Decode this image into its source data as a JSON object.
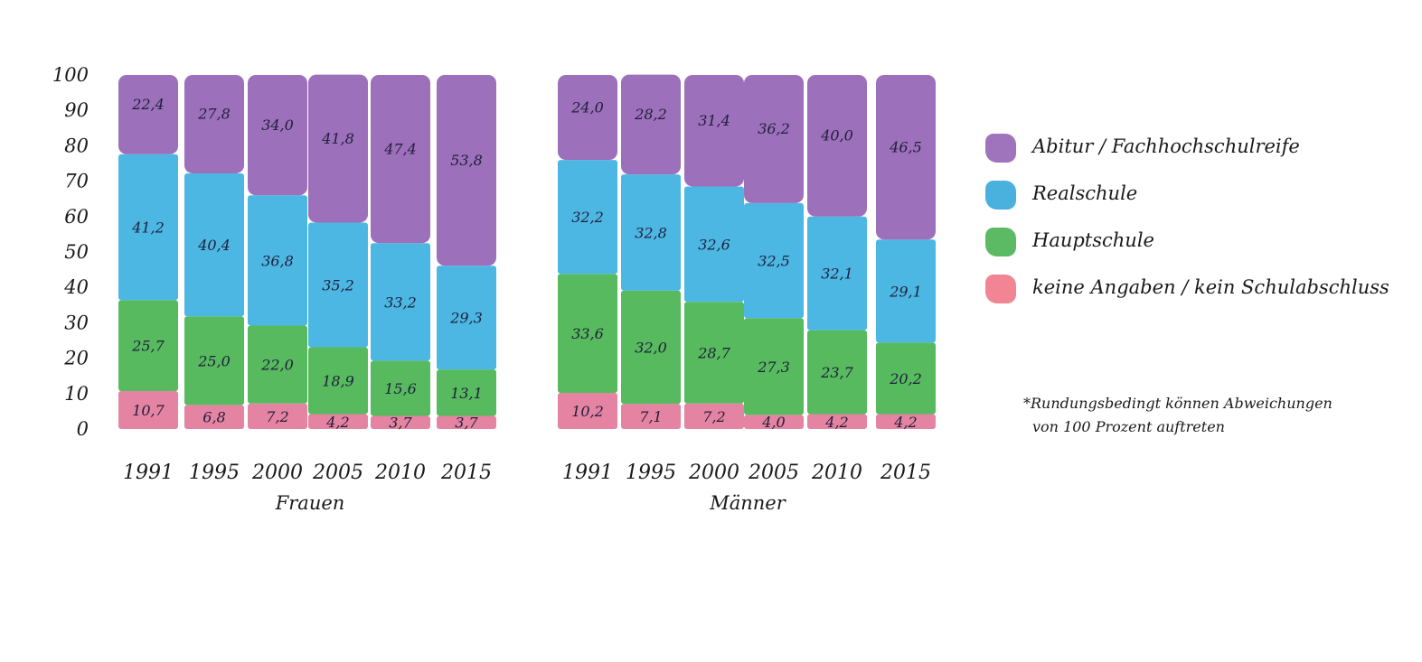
{
  "chart_data": {
    "type": "bar",
    "stacked": true,
    "ylim": [
      0,
      100
    ],
    "yticks": [
      "0",
      "10",
      "20",
      "30",
      "40",
      "50",
      "60",
      "70",
      "80",
      "90",
      "100"
    ],
    "groups": [
      {
        "name": "Frauen",
        "categories": [
          "1991",
          "1995",
          "2000",
          "2005",
          "2010",
          "2015"
        ],
        "series": [
          {
            "name": "keine Angaben / kein Schulabschluss",
            "values": [
              10.7,
              6.8,
              7.2,
              4.2,
              3.7,
              3.7
            ],
            "labels": [
              "10,7",
              "6,8",
              "7,2",
              "4,2",
              "3,7",
              "3,7"
            ]
          },
          {
            "name": "Hauptschule",
            "values": [
              25.7,
              25.0,
              22.0,
              18.9,
              15.6,
              13.1
            ],
            "labels": [
              "25,7",
              "25,0",
              "22,0",
              "18,9",
              "15,6",
              "13,1"
            ]
          },
          {
            "name": "Realschule",
            "values": [
              41.2,
              40.4,
              36.8,
              35.2,
              33.2,
              29.3
            ],
            "labels": [
              "41,2",
              "40,4",
              "36,8",
              "35,2",
              "33,2",
              "29,3"
            ]
          },
          {
            "name": "Abitur / Fachhochschulreife",
            "values": [
              22.4,
              27.8,
              34.0,
              41.8,
              47.4,
              53.8
            ],
            "labels": [
              "22,4",
              "27,8",
              "34,0",
              "41,8",
              "47,4",
              "53,8"
            ]
          }
        ]
      },
      {
        "name": "Männer",
        "categories": [
          "1991",
          "1995",
          "2000",
          "2005",
          "2010",
          "2015"
        ],
        "series": [
          {
            "name": "keine Angaben / kein Schulabschluss",
            "values": [
              10.2,
              7.1,
              7.2,
              4.0,
              4.2,
              4.2
            ],
            "labels": [
              "10,2",
              "7,1",
              "7,2",
              "4,0",
              "4,2",
              "4,2"
            ]
          },
          {
            "name": "Hauptschule",
            "values": [
              33.6,
              32.0,
              28.7,
              27.3,
              23.7,
              20.2
            ],
            "labels": [
              "33,6",
              "32,0",
              "28,7",
              "27,3",
              "23,7",
              "20,2"
            ]
          },
          {
            "name": "Realschule",
            "values": [
              32.2,
              32.8,
              32.6,
              32.5,
              32.1,
              29.1
            ],
            "labels": [
              "32,2",
              "32,8",
              "32,6",
              "32,5",
              "32,1",
              "29,1"
            ]
          },
          {
            "name": "Abitur / Fachhochschulreife",
            "values": [
              24.0,
              28.2,
              31.4,
              36.2,
              40.0,
              46.5
            ],
            "labels": [
              "24,0",
              "28,2",
              "31,4",
              "36,2",
              "40,0",
              "46,5"
            ]
          }
        ]
      }
    ]
  },
  "legend": [
    {
      "label": "Abitur / Fachhochschulreife",
      "color": "#8f5cb0"
    },
    {
      "label": "Realschule",
      "color": "#2aa3d8"
    },
    {
      "label": "Hauptschule",
      "color": "#3fae4a"
    },
    {
      "label": "keine Angaben / kein Schulabschluss",
      "color": "#ee7080"
    }
  ],
  "colors": {
    "abitur": "#9464b5",
    "realschule": "#3aafe0",
    "hauptschule": "#45b24e",
    "keine_angaben": "#e27598"
  },
  "footnote": {
    "line1": "*Rundungsbedingt können Abweichungen",
    "line2": "von 100 Prozent auftreten"
  }
}
